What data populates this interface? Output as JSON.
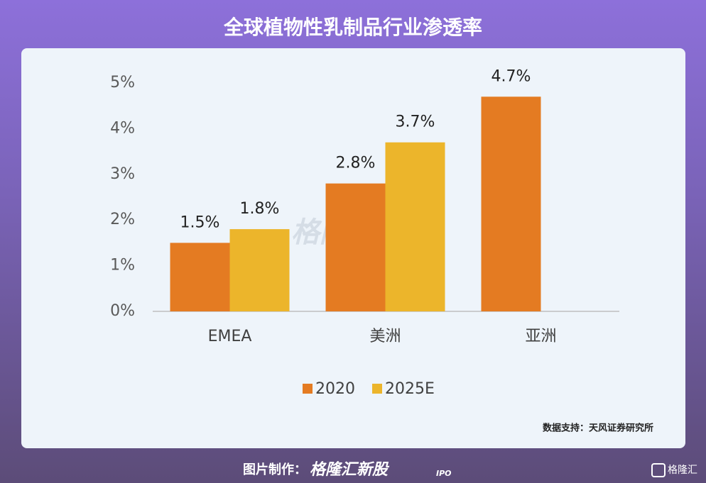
{
  "chart_data": {
    "type": "bar",
    "title": "全球植物性乳制品行业渗透率",
    "categories": [
      "EMEA",
      "美洲",
      "亚洲"
    ],
    "series": [
      {
        "name": "2020",
        "color": "#e47b22",
        "values": [
          1.5,
          2.8,
          4.7
        ],
        "value_labels": [
          "1.5%",
          "2.8%",
          "4.7%"
        ]
      },
      {
        "name": "2025E",
        "color": "#ecb52b",
        "values": [
          1.8,
          3.7,
          null
        ],
        "value_labels": [
          "1.8%",
          "3.7%",
          null
        ]
      }
    ],
    "ylim": [
      0,
      5
    ],
    "yticks": [
      {
        "value": 0,
        "label": "0%"
      },
      {
        "value": 1,
        "label": "1%"
      },
      {
        "value": 2,
        "label": "2%"
      },
      {
        "value": 3,
        "label": "3%"
      },
      {
        "value": 4,
        "label": "4%"
      },
      {
        "value": 5,
        "label": "5%"
      }
    ],
    "grid": false,
    "legend": "bottom",
    "source": "数据支持：天风证券研究所",
    "watermark": "格隆汇新股",
    "footer": {
      "label": "图片制作：",
      "brand": "格隆汇新股",
      "brand_tag": "IPO",
      "logo": "格隆汇"
    }
  }
}
